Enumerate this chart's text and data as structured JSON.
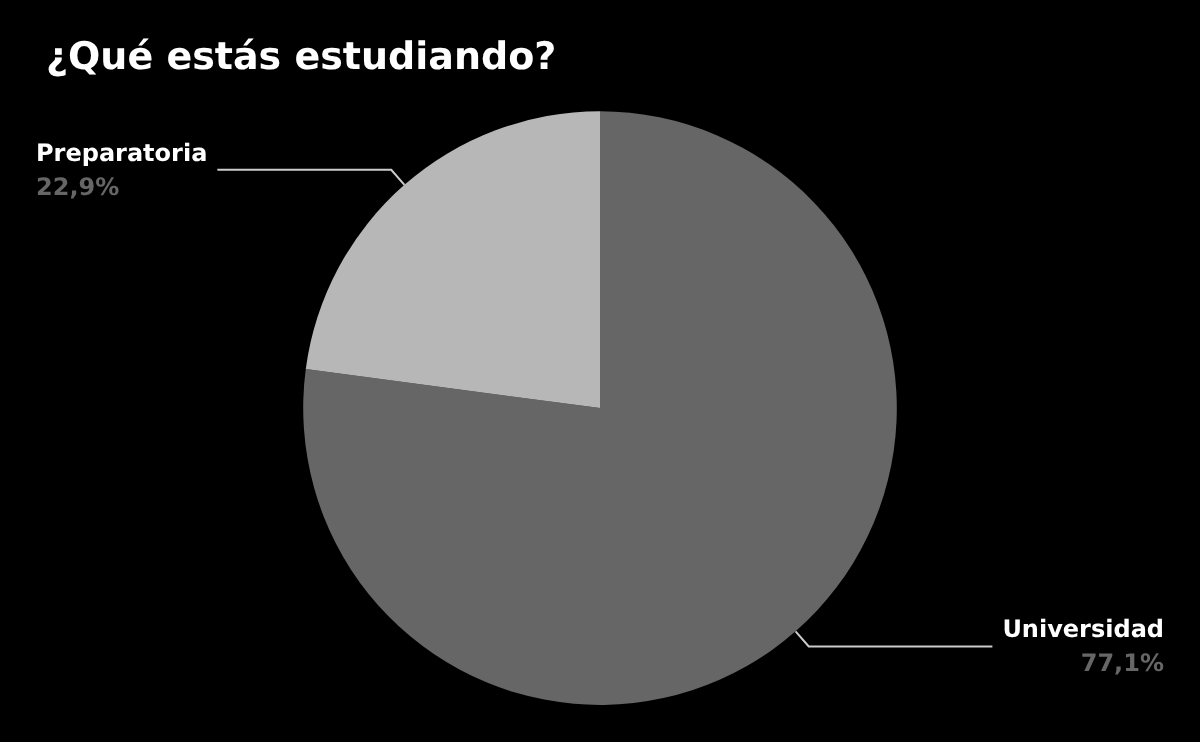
{
  "chart_data": {
    "type": "pie",
    "title": "¿Qué estás estudiando?",
    "categories": [
      "Universidad",
      "Preparatoria"
    ],
    "values": [
      77.1,
      22.9
    ],
    "colors": [
      "#666666",
      "#b7b7b7"
    ],
    "value_labels": [
      "77,1%",
      "22,9%"
    ],
    "legend": false
  }
}
